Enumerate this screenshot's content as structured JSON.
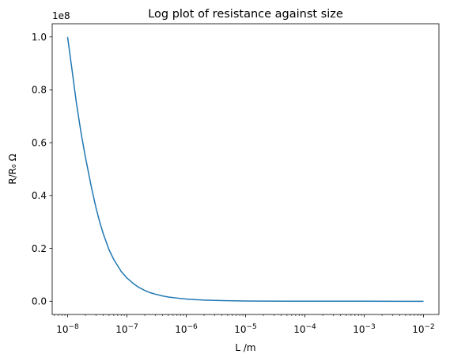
{
  "chart_data": {
    "type": "line",
    "title": "Log plot of resistance against size",
    "xlabel": "L /m",
    "ylabel": "R/R₀ Ω",
    "y_offset_label": "1e8",
    "xscale": "log",
    "xlim": [
      5.5e-09,
      0.0182
    ],
    "ylim": [
      -0.05,
      1.05
    ],
    "x_ticks": [
      {
        "value": 1e-08,
        "base": "10",
        "exp": "−8"
      },
      {
        "value": 1e-07,
        "base": "10",
        "exp": "−7"
      },
      {
        "value": 1e-06,
        "base": "10",
        "exp": "−6"
      },
      {
        "value": 1e-05,
        "base": "10",
        "exp": "−5"
      },
      {
        "value": 0.0001,
        "base": "10",
        "exp": "−4"
      },
      {
        "value": 0.001,
        "base": "10",
        "exp": "−3"
      },
      {
        "value": 0.01,
        "base": "10",
        "exp": "−2"
      }
    ],
    "y_ticks": [
      {
        "value": 0.0,
        "label": "0.0"
      },
      {
        "value": 0.2,
        "label": "0.2"
      },
      {
        "value": 0.4,
        "label": "0.4"
      },
      {
        "value": 0.6,
        "label": "0.6"
      },
      {
        "value": 0.8,
        "label": "0.8"
      },
      {
        "value": 1.0,
        "label": "1.0"
      }
    ],
    "grid": false,
    "series": [
      {
        "color": "#1f77b4",
        "x": [
          1e-08,
          1.2e-08,
          1.4e-08,
          1.7e-08,
          2e-08,
          2.5e-08,
          3e-08,
          3.5e-08,
          4e-08,
          5e-08,
          6e-08,
          7e-08,
          8e-08,
          1e-07,
          1.3e-07,
          1.6e-07,
          2e-07,
          2.5e-07,
          3e-07,
          4e-07,
          5e-07,
          7e-07,
          1e-06,
          1.5e-06,
          2e-06,
          3e-06,
          5e-06,
          1e-05,
          2e-05,
          5e-05,
          0.0001,
          0.001,
          0.01
        ],
        "y": [
          1.0,
          0.868,
          0.754,
          0.632,
          0.545,
          0.435,
          0.355,
          0.298,
          0.255,
          0.195,
          0.158,
          0.134,
          0.113,
          0.088,
          0.066,
          0.052,
          0.041,
          0.032,
          0.027,
          0.02,
          0.016,
          0.012,
          0.0085,
          0.0058,
          0.0045,
          0.0031,
          0.0019,
          0.001,
          0.0005,
          0.0002,
          0.0001,
          1e-05,
          0.0
        ]
      }
    ]
  }
}
